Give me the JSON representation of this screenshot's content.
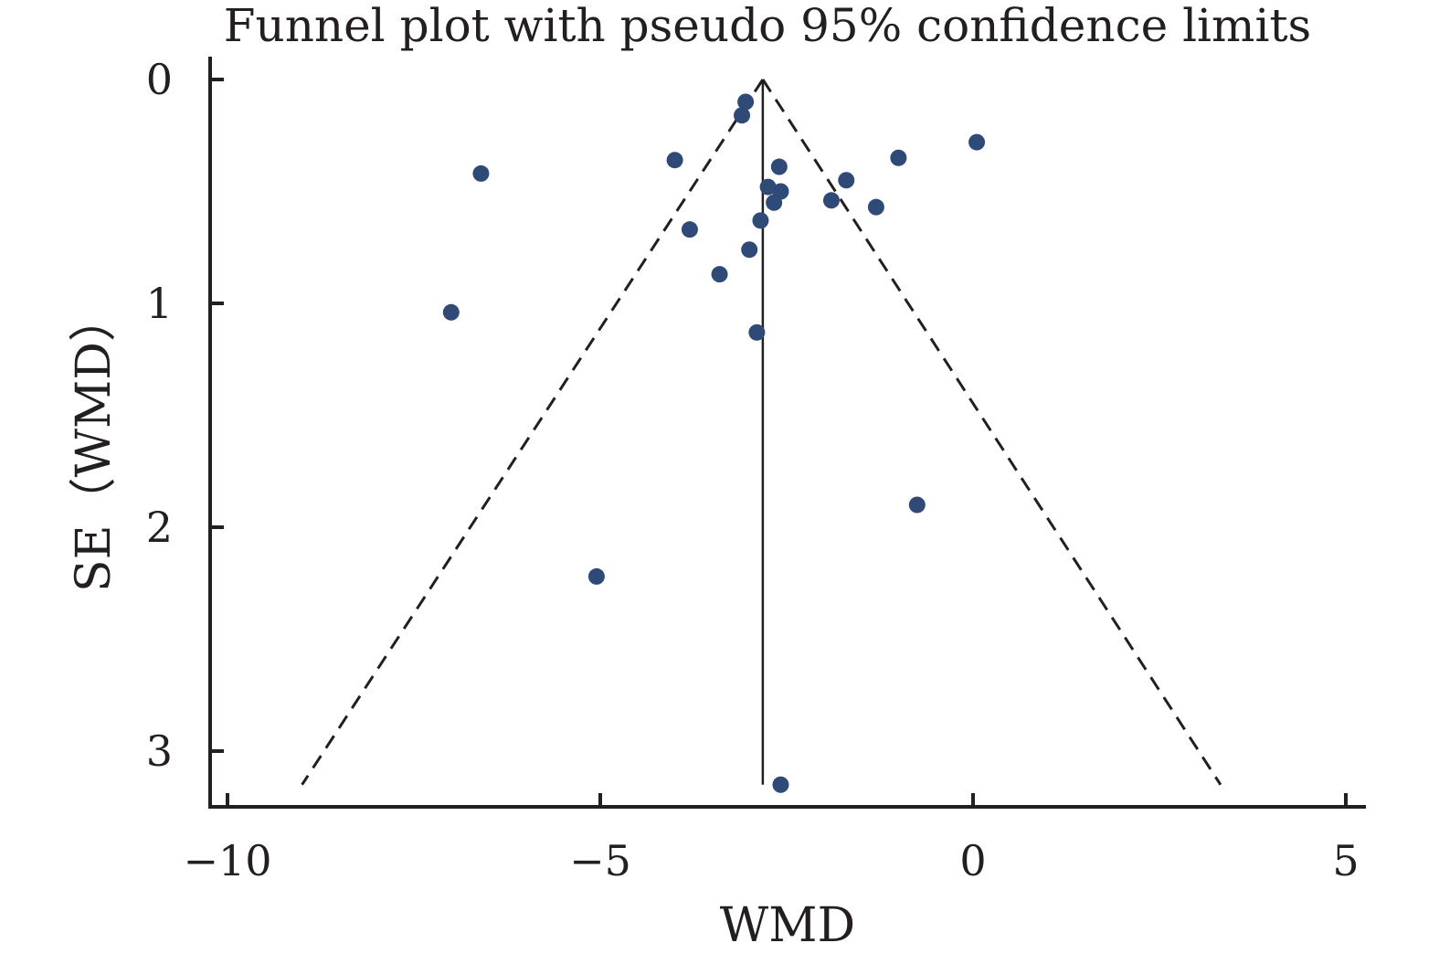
{
  "chart_data": {
    "type": "scatter",
    "title": "Funnel plot with pseudo 95% confidence limits",
    "xlabel": "WMD",
    "ylabel": "SE（WMD）",
    "xlim": [
      -10.2,
      5.2
    ],
    "ylim": [
      3.23,
      0
    ],
    "y_inverted": true,
    "x_ticks": [
      {
        "value": -10,
        "label": "−10"
      },
      {
        "value": -5,
        "label": "−5"
      },
      {
        "value": 0,
        "label": "0"
      },
      {
        "value": 5,
        "label": "5"
      }
    ],
    "y_ticks": [
      {
        "value": 0,
        "label": "0"
      },
      {
        "value": 1,
        "label": "1"
      },
      {
        "value": 2,
        "label": "2"
      },
      {
        "value": 3,
        "label": "3"
      }
    ],
    "pooled_estimate": -2.82,
    "pooled_line_range": [
      0,
      3.15
    ],
    "confidence_limits": {
      "style": "dashed",
      "apex": [
        -2.82,
        0
      ],
      "left_end": [
        -9.0,
        3.15
      ],
      "right_end": [
        3.32,
        3.15
      ]
    },
    "points": [
      {
        "x": -3.05,
        "y": 0.1
      },
      {
        "x": -3.1,
        "y": 0.16
      },
      {
        "x": 0.05,
        "y": 0.28
      },
      {
        "x": -4.0,
        "y": 0.36
      },
      {
        "x": -1.0,
        "y": 0.35
      },
      {
        "x": -2.6,
        "y": 0.39
      },
      {
        "x": -6.6,
        "y": 0.42
      },
      {
        "x": -1.7,
        "y": 0.45
      },
      {
        "x": -2.75,
        "y": 0.48
      },
      {
        "x": -2.58,
        "y": 0.5
      },
      {
        "x": -1.9,
        "y": 0.54
      },
      {
        "x": -2.67,
        "y": 0.55
      },
      {
        "x": -1.3,
        "y": 0.57
      },
      {
        "x": -2.85,
        "y": 0.63
      },
      {
        "x": -3.8,
        "y": 0.67
      },
      {
        "x": -3.0,
        "y": 0.76
      },
      {
        "x": -3.4,
        "y": 0.87
      },
      {
        "x": -7.0,
        "y": 1.04
      },
      {
        "x": -2.9,
        "y": 1.13
      },
      {
        "x": -0.75,
        "y": 1.9
      },
      {
        "x": -5.05,
        "y": 2.22
      },
      {
        "x": -2.58,
        "y": 3.15
      }
    ],
    "grid": false,
    "legend": "none",
    "marker_color": "#304a78",
    "line_color": "#231f20"
  }
}
